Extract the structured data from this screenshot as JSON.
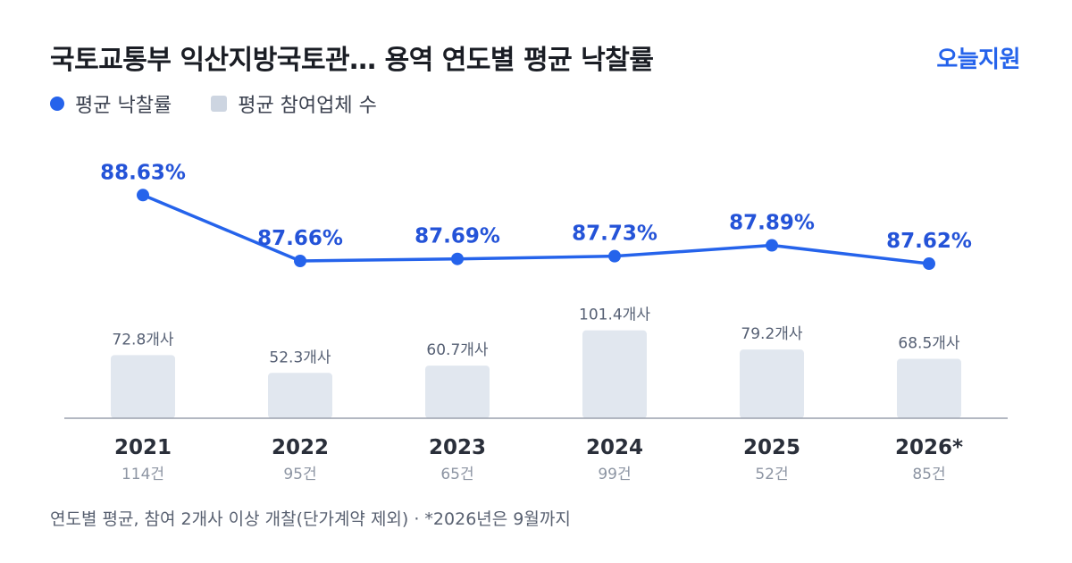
{
  "header": {
    "title": "국토교통부 익산지방국토관… 용역 연도별 평균 낙찰률",
    "brand": "오늘지원"
  },
  "legend": {
    "rate": "평균 낙찰률",
    "bidders": "평균 참여업체 수"
  },
  "footnote": "연도별 평균, 참여 2개사 이상 개찰(단가계약 제외) · *2026년은 9월까지",
  "colors": {
    "line": "#2563eb",
    "bar": "#e1e7ef",
    "axis": "#9aa1ad"
  },
  "chart_data": {
    "type": "bar+line",
    "categories": [
      "2021",
      "2022",
      "2023",
      "2024",
      "2025",
      "2026*"
    ],
    "counts": [
      "114건",
      "95건",
      "65건",
      "99건",
      "52건",
      "85건"
    ],
    "series": [
      {
        "name": "평균 낙찰률",
        "type": "line",
        "values": [
          88.63,
          87.66,
          87.69,
          87.73,
          87.89,
          87.62
        ],
        "labels": [
          "88.63%",
          "87.66%",
          "87.69%",
          "87.73%",
          "87.89%",
          "87.62%"
        ]
      },
      {
        "name": "평균 참여업체 수",
        "type": "bar",
        "values": [
          72.8,
          52.3,
          60.7,
          101.4,
          79.2,
          68.5
        ],
        "labels": [
          "72.8개사",
          "52.3개사",
          "60.7개사",
          "101.4개사",
          "79.2개사",
          "68.5개사"
        ]
      }
    ],
    "legend_position": "top-left",
    "grid": false
  }
}
